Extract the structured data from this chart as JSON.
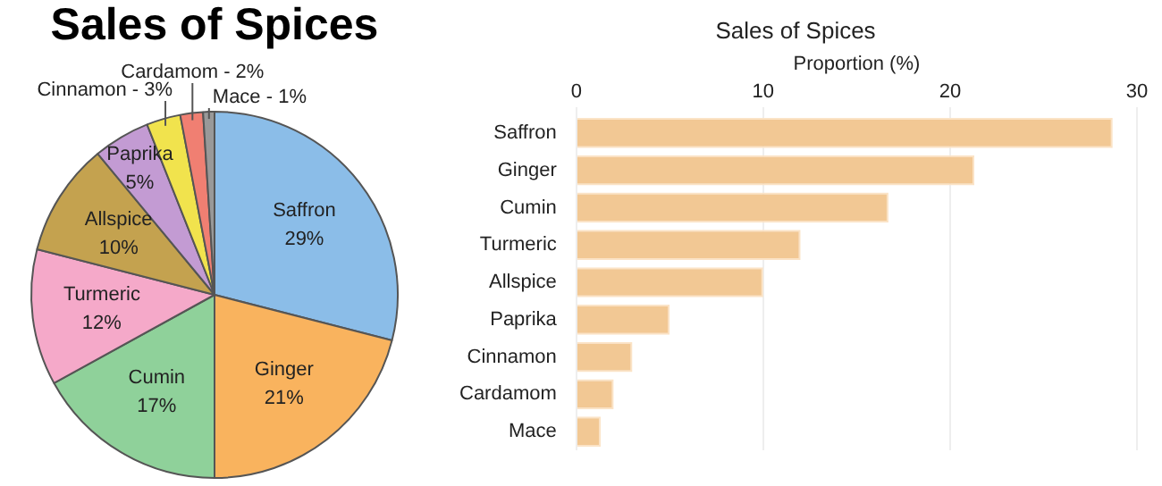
{
  "chart_data": [
    {
      "type": "pie",
      "title": "Sales of Spices",
      "categories": [
        "Saffron",
        "Ginger",
        "Cumin",
        "Turmeric",
        "Allspice",
        "Paprika",
        "Cinnamon",
        "Cardamom",
        "Mace"
      ],
      "values": [
        29,
        21,
        17,
        12,
        10,
        5,
        3,
        2,
        1
      ],
      "value_labels": [
        "29%",
        "21%",
        "17%",
        "12%",
        "10%",
        "5%",
        "3%",
        "2%",
        "1%"
      ],
      "colors": [
        "#8bbde8",
        "#f9b35e",
        "#8fd19a",
        "#f5a9c9",
        "#c4a24f",
        "#c39bd3",
        "#f1e34d",
        "#f07f72",
        "#999999"
      ]
    },
    {
      "type": "bar",
      "title": "Sales of Spices",
      "xlabel": "Proportion (%)",
      "orientation": "horizontal",
      "categories": [
        "Saffron",
        "Ginger",
        "Cumin",
        "Turmeric",
        "Allspice",
        "Paprika",
        "Cinnamon",
        "Cardamom",
        "Mace"
      ],
      "values": [
        28.7,
        21.3,
        16.7,
        12.0,
        10.0,
        5.0,
        3.0,
        2.0,
        1.3
      ],
      "color": "#f2c894",
      "xlim": [
        0,
        30
      ],
      "xticks": [
        0,
        10,
        20,
        30
      ],
      "grid": "x"
    }
  ]
}
